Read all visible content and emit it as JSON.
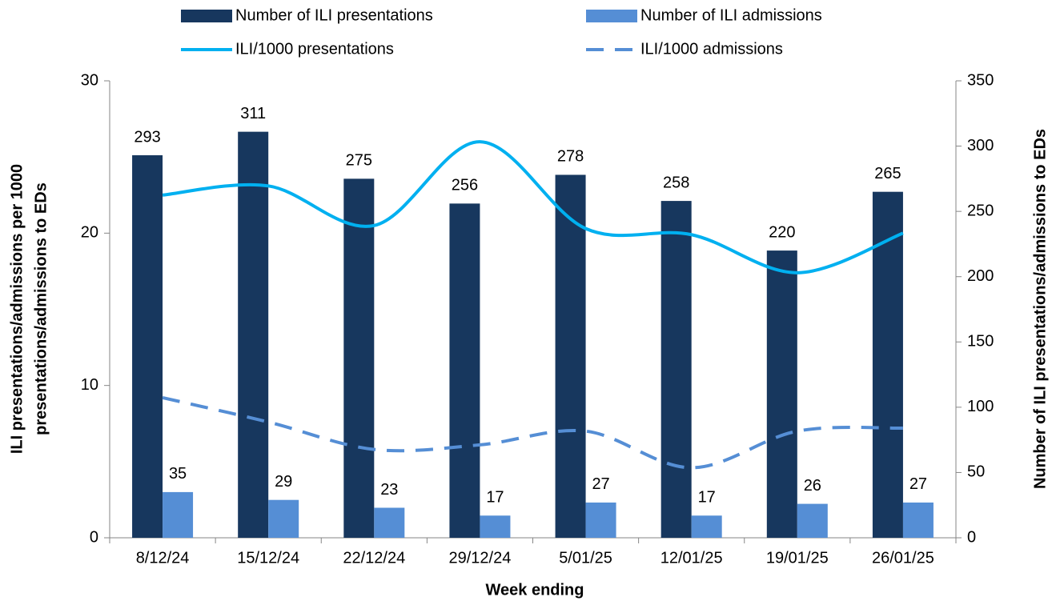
{
  "chart_data": {
    "type": "bar-line",
    "categories": [
      "8/12/24",
      "15/12/24",
      "22/12/24",
      "29/12/24",
      "5/01/25",
      "12/01/25",
      "19/01/25",
      "26/01/25"
    ],
    "series": [
      {
        "name": "Number of ILI presentations",
        "type": "bar",
        "axis": "y2",
        "color": "#17375e",
        "values": [
          293,
          311,
          275,
          256,
          278,
          258,
          220,
          265
        ]
      },
      {
        "name": "Number of ILI admissions",
        "type": "bar",
        "axis": "y2",
        "color": "#558ed5",
        "values": [
          35,
          29,
          23,
          17,
          27,
          17,
          26,
          27
        ]
      },
      {
        "name": "ILI/1000 presentations",
        "type": "line",
        "axis": "y",
        "color": "#00b0f0",
        "dashed": false,
        "values": [
          22.5,
          23.1,
          20.5,
          26.0,
          20.3,
          19.9,
          17.4,
          20.0
        ]
      },
      {
        "name": "ILI/1000 admissions",
        "type": "line",
        "axis": "y",
        "color": "#558ed5",
        "dashed": true,
        "values": [
          9.2,
          7.6,
          5.8,
          6.1,
          7.0,
          4.6,
          7.0,
          7.2
        ]
      }
    ],
    "ylim": [
      0,
      30
    ],
    "yticks": [
      0,
      10,
      20,
      30
    ],
    "y2lim": [
      0,
      350
    ],
    "y2ticks": [
      0,
      50,
      100,
      150,
      200,
      250,
      300,
      350
    ],
    "ylabel": [
      "ILI presentations/admissions per 1000",
      "presentations/admissions to EDs"
    ],
    "y2label": "Number of ILI presentations/admissions to EDs",
    "xlabel": "Week ending",
    "smooth": true,
    "grid": false,
    "legend": "top"
  }
}
